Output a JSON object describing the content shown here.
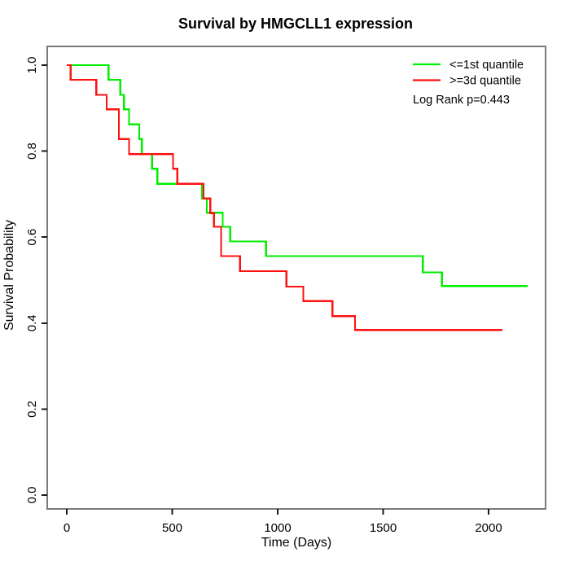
{
  "chart_data": {
    "type": "line",
    "subtype": "kaplan-meier-step",
    "title": "Survival by HMGCLL1 expression",
    "xlabel": "Time (Days)",
    "ylabel": "Survival Probability",
    "xlim": [
      0,
      2270
    ],
    "ylim": [
      0.0,
      1.0
    ],
    "grid": false,
    "legend_position": "top-right",
    "x_ticks": [
      {
        "value": 0,
        "label": "0"
      },
      {
        "value": 500,
        "label": "500"
      },
      {
        "value": 1000,
        "label": "1000"
      },
      {
        "value": 1500,
        "label": "1500"
      },
      {
        "value": 2000,
        "label": "2000"
      }
    ],
    "y_ticks": [
      {
        "value": 0.0,
        "label": "0.0"
      },
      {
        "value": 0.2,
        "label": "0.2"
      },
      {
        "value": 0.4,
        "label": "0.4"
      },
      {
        "value": 0.6,
        "label": "0.6"
      },
      {
        "value": 0.8,
        "label": "0.8"
      },
      {
        "value": 1.0,
        "label": "1.0"
      }
    ],
    "legend": {
      "entries": [
        {
          "label": "<=1st quantile",
          "color": "#00EE00"
        },
        {
          "label": ">=3d quantile",
          "color": "#FF1111"
        }
      ]
    },
    "annotation": "Log Rank p=0.443",
    "series": [
      {
        "name": "<=1st quantile",
        "color": "#00EE00",
        "end_time": 2185,
        "steps": [
          [
            0,
            1.0
          ],
          [
            198,
            0.966
          ],
          [
            254,
            0.931
          ],
          [
            271,
            0.897
          ],
          [
            295,
            0.862
          ],
          [
            344,
            0.828
          ],
          [
            356,
            0.793
          ],
          [
            404,
            0.759
          ],
          [
            430,
            0.724
          ],
          [
            641,
            0.69
          ],
          [
            664,
            0.657
          ],
          [
            739,
            0.624
          ],
          [
            775,
            0.59
          ],
          [
            945,
            0.556
          ],
          [
            1688,
            0.518
          ],
          [
            1779,
            0.486
          ]
        ]
      },
      {
        "name": ">=3d quantile",
        "color": "#FF1111",
        "end_time": 2065,
        "steps": [
          [
            0,
            1.0
          ],
          [
            18,
            0.966
          ],
          [
            140,
            0.931
          ],
          [
            189,
            0.897
          ],
          [
            247,
            0.828
          ],
          [
            295,
            0.793
          ],
          [
            504,
            0.759
          ],
          [
            524,
            0.724
          ],
          [
            649,
            0.69
          ],
          [
            681,
            0.656
          ],
          [
            698,
            0.624
          ],
          [
            732,
            0.556
          ],
          [
            822,
            0.521
          ],
          [
            1041,
            0.485
          ],
          [
            1122,
            0.451
          ],
          [
            1260,
            0.416
          ],
          [
            1367,
            0.384
          ]
        ]
      }
    ]
  }
}
